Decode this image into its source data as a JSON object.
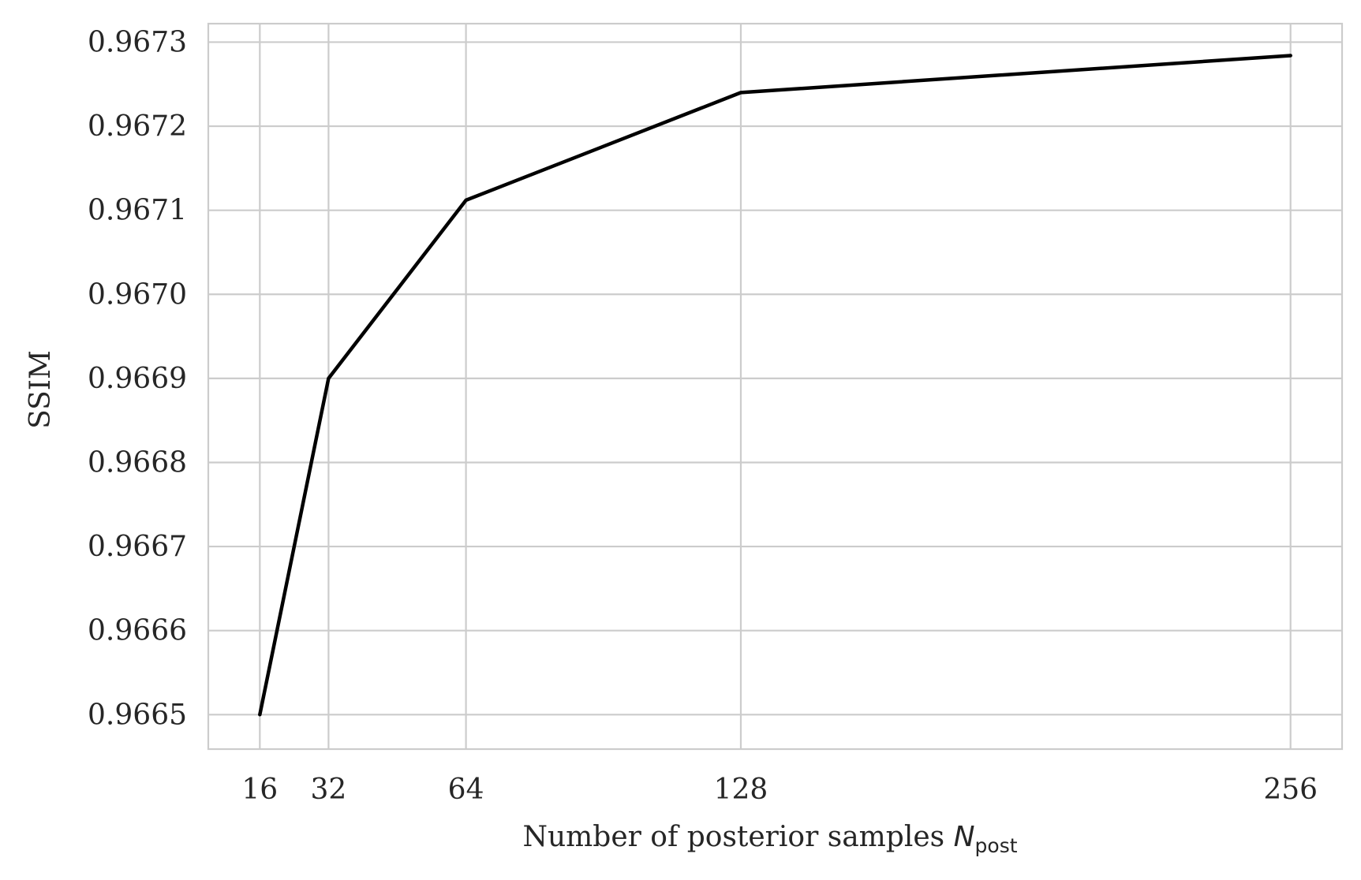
{
  "chart_data": {
    "type": "line",
    "x": [
      16,
      32,
      64,
      128,
      256
    ],
    "series": [
      {
        "values": [
          0.9665,
          0.9669,
          0.967112,
          0.96724,
          0.967284
        ]
      }
    ],
    "xticks": [
      16,
      32,
      64,
      128,
      256
    ],
    "xtick_labels": [
      "16",
      "32",
      "64",
      "128",
      "256"
    ],
    "yticks": [
      0.9665,
      0.9666,
      0.9667,
      0.9668,
      0.9669,
      0.967,
      0.9671,
      0.9672,
      0.9673
    ],
    "ytick_labels": [
      "0.9665",
      "0.9666",
      "0.9667",
      "0.9668",
      "0.9669",
      "0.9670",
      "0.9671",
      "0.9672",
      "0.9673"
    ],
    "xlim": [
      4,
      268
    ],
    "ylim": [
      0.966459,
      0.967322
    ],
    "xlabel_text": "Number of posterior samples ",
    "xlabel_symbol": "N",
    "xlabel_subscript": "post",
    "ylabel": "SSIM",
    "grid": true,
    "line_color": "#000000",
    "grid_color": "#cccccc"
  }
}
